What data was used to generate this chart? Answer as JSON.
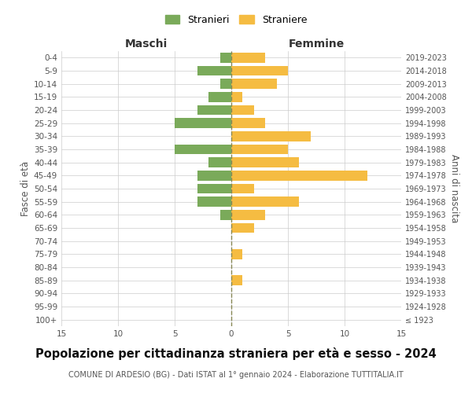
{
  "age_groups": [
    "100+",
    "95-99",
    "90-94",
    "85-89",
    "80-84",
    "75-79",
    "70-74",
    "65-69",
    "60-64",
    "55-59",
    "50-54",
    "45-49",
    "40-44",
    "35-39",
    "30-34",
    "25-29",
    "20-24",
    "15-19",
    "10-14",
    "5-9",
    "0-4"
  ],
  "birth_years": [
    "≤ 1923",
    "1924-1928",
    "1929-1933",
    "1934-1938",
    "1939-1943",
    "1944-1948",
    "1949-1953",
    "1954-1958",
    "1959-1963",
    "1964-1968",
    "1969-1973",
    "1974-1978",
    "1979-1983",
    "1984-1988",
    "1989-1993",
    "1994-1998",
    "1999-2003",
    "2004-2008",
    "2009-2013",
    "2014-2018",
    "2019-2023"
  ],
  "males": [
    0,
    0,
    0,
    0,
    0,
    0,
    0,
    0,
    1,
    3,
    3,
    3,
    2,
    5,
    0,
    5,
    3,
    2,
    1,
    3,
    1
  ],
  "females": [
    0,
    0,
    0,
    1,
    0,
    1,
    0,
    2,
    3,
    6,
    2,
    12,
    6,
    5,
    7,
    3,
    2,
    1,
    4,
    5,
    3
  ],
  "male_color": "#7aaa5a",
  "female_color": "#f5bc42",
  "center_line_color": "#888855",
  "grid_color": "#cccccc",
  "background_color": "#ffffff",
  "title": "Popolazione per cittadinanza straniera per età e sesso - 2024",
  "subtitle": "COMUNE DI ARDESIO (BG) - Dati ISTAT al 1° gennaio 2024 - Elaborazione TUTTITALIA.IT",
  "legend_stranieri": "Stranieri",
  "legend_straniere": "Straniere",
  "header_left": "Maschi",
  "header_right": "Femmine",
  "ylabel_left": "Fasce di età",
  "ylabel_right": "Anni di nascita",
  "xlim": 15,
  "bar_height": 0.75,
  "title_fontsize": 10.5,
  "subtitle_fontsize": 7,
  "header_fontsize": 10,
  "tick_fontsize": 7.5,
  "legend_fontsize": 9,
  "ylabel_fontsize": 8.5
}
